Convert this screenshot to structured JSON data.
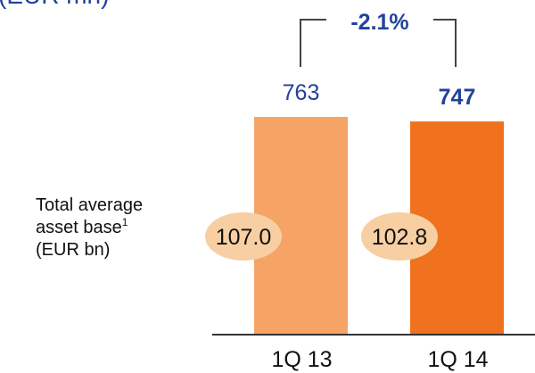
{
  "header_fragment": "(EUR mn)",
  "side_label": {
    "line1": "Total average",
    "line2": "asset base",
    "footnote_mark": "1",
    "line3": "(EUR bn)"
  },
  "change_annotation": "-2.1%",
  "colors": {
    "bar_1q13": "#F5A466",
    "bar_1q14": "#F0711E",
    "ellipse_fill": "#F8CFA2",
    "value_text": "#22429A",
    "bracket": "#444444",
    "axis": "#333333"
  },
  "chart_data": {
    "type": "bar",
    "categories": [
      "1Q 13",
      "1Q 14"
    ],
    "values": [
      763,
      747
    ],
    "value_labels": [
      "763",
      "747"
    ],
    "asset_base_labels": [
      "107.0",
      "102.8"
    ],
    "asset_base_values": [
      107.0,
      102.8
    ],
    "ylim": [
      0,
      800
    ],
    "grid": false,
    "legend": "none"
  }
}
